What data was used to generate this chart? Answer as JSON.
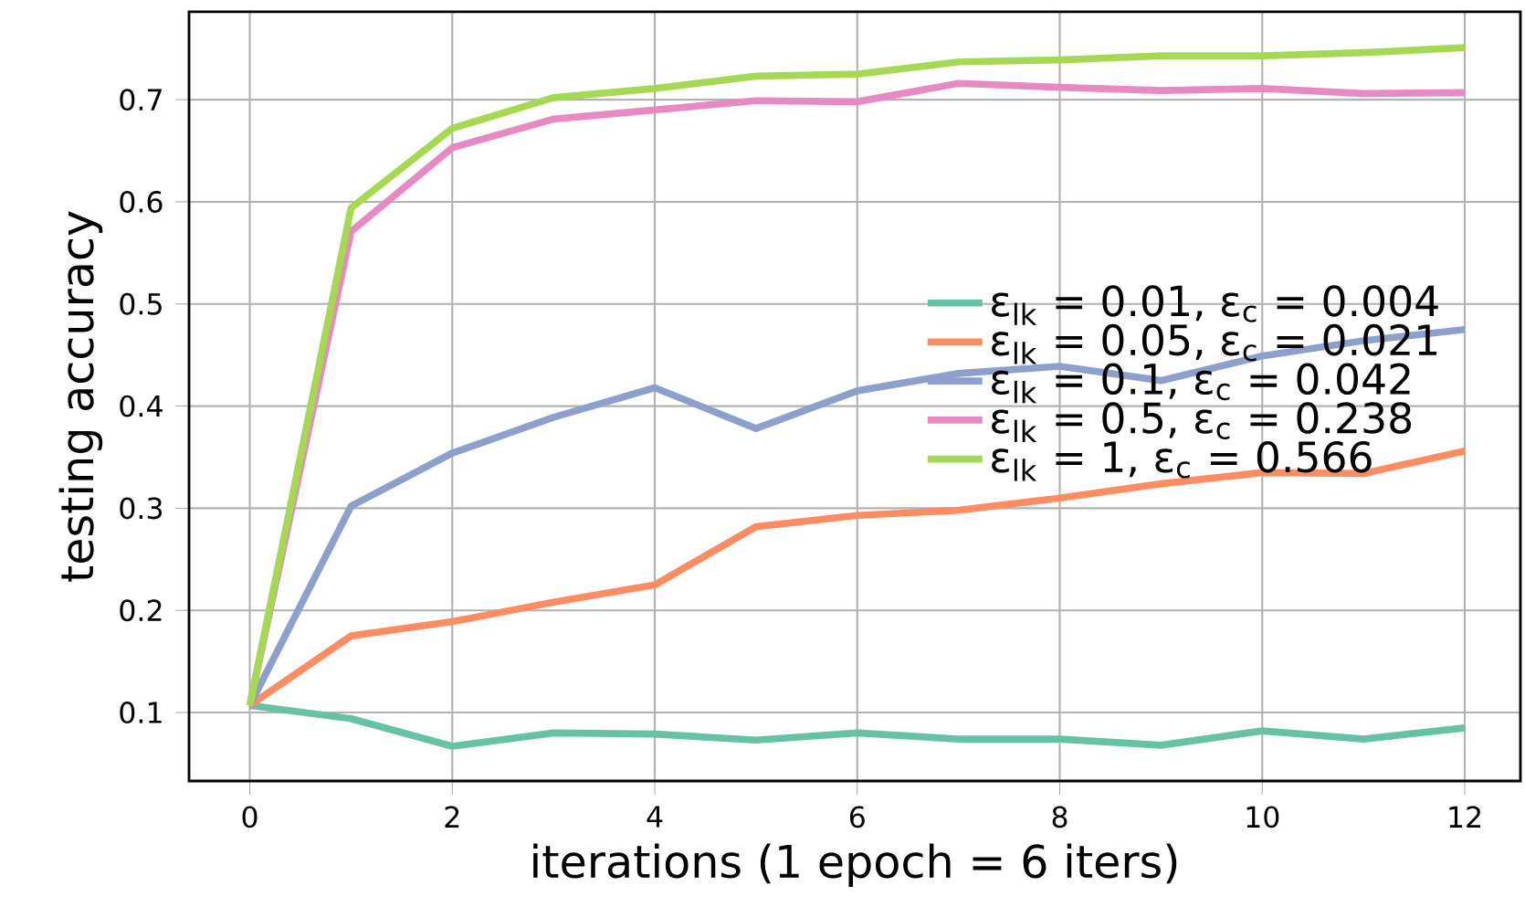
{
  "chart_data": {
    "type": "line",
    "xlabel": "iterations (1 epoch = 6 iters)",
    "ylabel": "testing accuracy",
    "x": [
      0,
      1,
      2,
      3,
      4,
      5,
      6,
      7,
      8,
      9,
      10,
      11,
      12
    ],
    "series": [
      {
        "name": "ε$_{lk}$ = 0.01, ε$_{c}$ = 0.004",
        "color": "#66c2a5",
        "values": [
          0.107,
          0.094,
          0.067,
          0.08,
          0.079,
          0.073,
          0.08,
          0.074,
          0.074,
          0.068,
          0.082,
          0.074,
          0.085
        ]
      },
      {
        "name": "ε$_{lk}$ = 0.05, ε$_{c}$ = 0.021",
        "color": "#fc8d62",
        "values": [
          0.107,
          0.175,
          0.189,
          0.208,
          0.225,
          0.282,
          0.293,
          0.298,
          0.31,
          0.324,
          0.335,
          0.334,
          0.356
        ]
      },
      {
        "name": "ε$_{lk}$ = 0.1, ε$_{c}$ = 0.042",
        "color": "#8da0cb",
        "values": [
          0.107,
          0.302,
          0.354,
          0.389,
          0.418,
          0.378,
          0.415,
          0.432,
          0.439,
          0.425,
          0.449,
          0.464,
          0.475
        ]
      },
      {
        "name": "ε$_{lk}$ = 0.5, ε$_{c}$ = 0.238",
        "color": "#e78ac3",
        "values": [
          0.107,
          0.571,
          0.653,
          0.681,
          0.69,
          0.699,
          0.698,
          0.716,
          0.712,
          0.709,
          0.711,
          0.706,
          0.707
        ]
      },
      {
        "name": "ε$_{lk}$ = 1, ε$_{c}$ = 0.566",
        "color": "#a6d854",
        "values": [
          0.107,
          0.594,
          0.672,
          0.702,
          0.711,
          0.723,
          0.725,
          0.737,
          0.739,
          0.743,
          0.743,
          0.746,
          0.751
        ]
      }
    ],
    "xlim": [
      -0.6,
      12.55
    ],
    "ylim": [
      0.033,
      0.786
    ],
    "xticks": [
      0,
      2,
      4,
      6,
      8,
      10,
      12
    ],
    "yticks": [
      0.1,
      0.2,
      0.3,
      0.4,
      0.5,
      0.6,
      0.7
    ],
    "grid": true,
    "legend": "right",
    "marker": "none",
    "line_style": "solid"
  }
}
